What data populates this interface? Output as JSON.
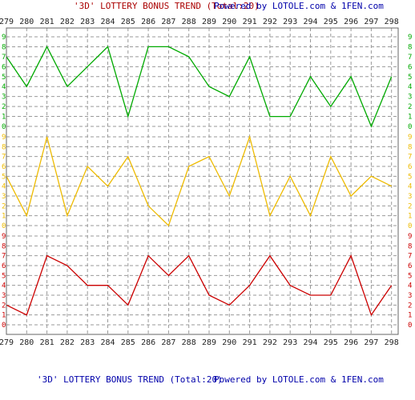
{
  "header": {
    "title_left": "'3D' LOTTERY BONUS TREND (Total:20)",
    "title_right": "Powered by LOTOLE.com & 1FEN.com"
  },
  "footer": {
    "title_left": "'3D' LOTTERY BONUS TREND (Total:20)",
    "title_right": "Powered by LOTOLE.com & 1FEN.com"
  },
  "colors": {
    "background": "#ffffff",
    "title_left": "#aa0000",
    "title_right": "#0000aa",
    "footer_left": "#0000aa",
    "footer_right": "#0000aa",
    "grid": "#999999",
    "axis": "#666666",
    "tick_labels": "#222222"
  },
  "chart_data": {
    "type": "line",
    "x": [
      279,
      280,
      281,
      282,
      283,
      284,
      285,
      286,
      287,
      288,
      289,
      290,
      291,
      292,
      293,
      294,
      295,
      296,
      297,
      298
    ],
    "digit_labels": [
      "0",
      "1",
      "2",
      "3",
      "4",
      "5",
      "6",
      "7",
      "8",
      "9"
    ],
    "ylim": [
      0,
      9
    ],
    "grid": true,
    "series": [
      {
        "color": "#00aa00",
        "values": [
          7,
          4,
          8,
          4,
          6,
          8,
          1,
          8,
          8,
          7,
          4,
          3,
          7,
          1,
          1,
          5,
          2,
          5,
          0,
          5
        ]
      },
      {
        "color": "#eebb00",
        "values": [
          5,
          1,
          9,
          1,
          6,
          4,
          7,
          2,
          0,
          6,
          7,
          3,
          9,
          1,
          5,
          1,
          7,
          3,
          5,
          4
        ]
      },
      {
        "color": "#cc0000",
        "values": [
          2,
          1,
          7,
          6,
          4,
          4,
          2,
          7,
          5,
          7,
          3,
          2,
          4,
          7,
          4,
          3,
          3,
          7,
          1,
          4
        ]
      }
    ]
  }
}
